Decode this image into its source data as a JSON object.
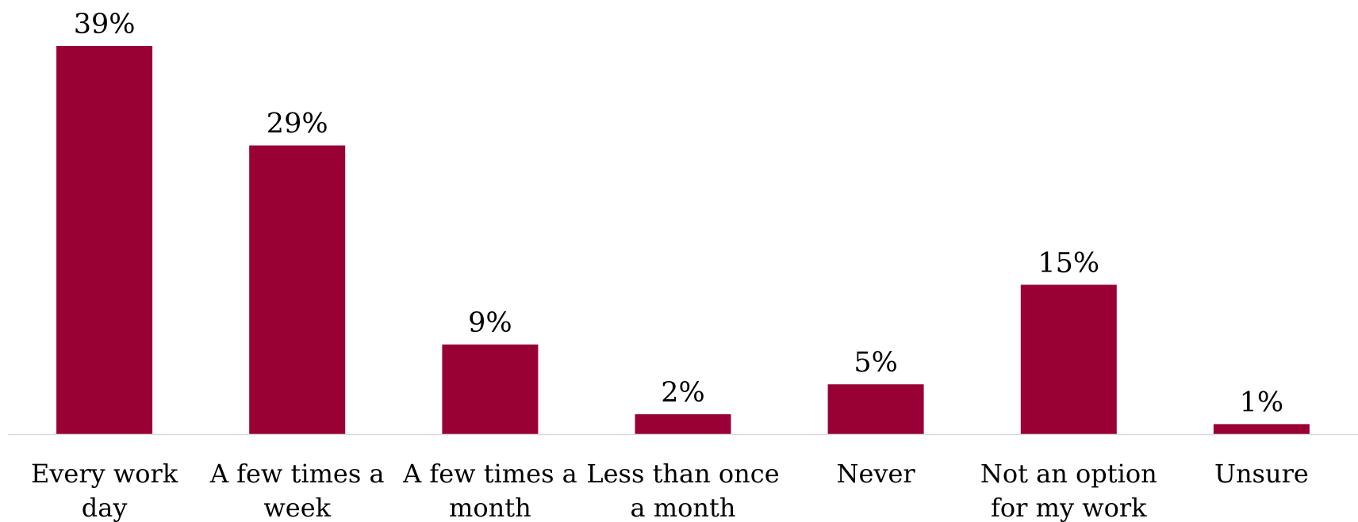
{
  "chart_data": {
    "type": "bar",
    "title": "",
    "xlabel": "",
    "ylabel": "",
    "categories": [
      [
        "Every work",
        "day"
      ],
      [
        "A few times a",
        "week"
      ],
      [
        "A few times a",
        "month"
      ],
      [
        "Less than once",
        "a month"
      ],
      [
        "Never"
      ],
      [
        "Not an option",
        "for my work"
      ],
      [
        "Unsure"
      ]
    ],
    "values": [
      39,
      29,
      9,
      2,
      5,
      15,
      1
    ],
    "value_labels": [
      "39%",
      "29%",
      "9%",
      "2%",
      "5%",
      "15%",
      "1%"
    ],
    "ylim": [
      0,
      40
    ],
    "grid": false,
    "legend": "none"
  },
  "colors": {
    "bar": "#990033",
    "axis": "#d9d9d9"
  }
}
